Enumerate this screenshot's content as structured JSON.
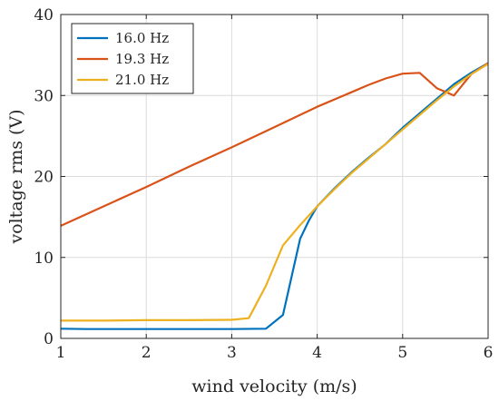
{
  "chart_data": {
    "type": "line",
    "xlabel": "wind velocity (m/s)",
    "ylabel": "voltage rms (V)",
    "xlim": [
      1,
      6
    ],
    "ylim": [
      0,
      40
    ],
    "xticks": [
      1,
      2,
      3,
      4,
      5,
      6
    ],
    "yticks": [
      0,
      10,
      20,
      30,
      40
    ],
    "xtick_labels": [
      "1",
      "2",
      "3",
      "4",
      "5",
      "6"
    ],
    "ytick_labels": [
      "0",
      "10",
      "20",
      "30",
      "40"
    ],
    "grid": true,
    "legend_position": "top-left",
    "series": [
      {
        "name": "16.0 Hz",
        "color": "#0072BD",
        "points": [
          [
            1.0,
            1.2
          ],
          [
            1.3,
            1.15
          ],
          [
            1.6,
            1.15
          ],
          [
            2.0,
            1.15
          ],
          [
            2.5,
            1.15
          ],
          [
            3.0,
            1.15
          ],
          [
            3.4,
            1.2
          ],
          [
            3.6,
            2.9
          ],
          [
            3.8,
            12.3
          ],
          [
            3.9,
            14.5
          ],
          [
            4.0,
            16.3
          ],
          [
            4.2,
            18.5
          ],
          [
            4.4,
            20.5
          ],
          [
            4.6,
            22.3
          ],
          [
            4.8,
            24.0
          ],
          [
            5.0,
            26.0
          ],
          [
            5.2,
            27.8
          ],
          [
            5.4,
            29.6
          ],
          [
            5.6,
            31.4
          ],
          [
            5.8,
            32.8
          ],
          [
            6.0,
            34.0
          ]
        ]
      },
      {
        "name": "19.3 Hz",
        "color": "#D95319",
        "points": [
          [
            1.0,
            13.9
          ],
          [
            1.5,
            16.3
          ],
          [
            2.0,
            18.7
          ],
          [
            2.5,
            21.2
          ],
          [
            3.0,
            23.6
          ],
          [
            3.5,
            26.1
          ],
          [
            4.0,
            28.6
          ],
          [
            4.4,
            30.4
          ],
          [
            4.6,
            31.3
          ],
          [
            4.8,
            32.1
          ],
          [
            5.0,
            32.7
          ],
          [
            5.2,
            32.8
          ],
          [
            5.4,
            30.9
          ],
          [
            5.6,
            30.0
          ],
          [
            5.8,
            32.6
          ],
          [
            6.0,
            34.0
          ]
        ]
      },
      {
        "name": "21.0 Hz",
        "color": "#EDB120",
        "points": [
          [
            1.0,
            2.2
          ],
          [
            1.5,
            2.2
          ],
          [
            2.0,
            2.25
          ],
          [
            2.5,
            2.25
          ],
          [
            3.0,
            2.3
          ],
          [
            3.2,
            2.5
          ],
          [
            3.4,
            6.5
          ],
          [
            3.6,
            11.5
          ],
          [
            3.8,
            14.0
          ],
          [
            4.0,
            16.3
          ],
          [
            4.2,
            18.4
          ],
          [
            4.4,
            20.4
          ],
          [
            4.6,
            22.2
          ],
          [
            4.8,
            24.0
          ],
          [
            5.0,
            25.8
          ],
          [
            5.2,
            27.6
          ],
          [
            5.4,
            29.4
          ],
          [
            5.6,
            31.1
          ],
          [
            5.8,
            32.6
          ],
          [
            6.0,
            33.9
          ]
        ]
      }
    ]
  }
}
